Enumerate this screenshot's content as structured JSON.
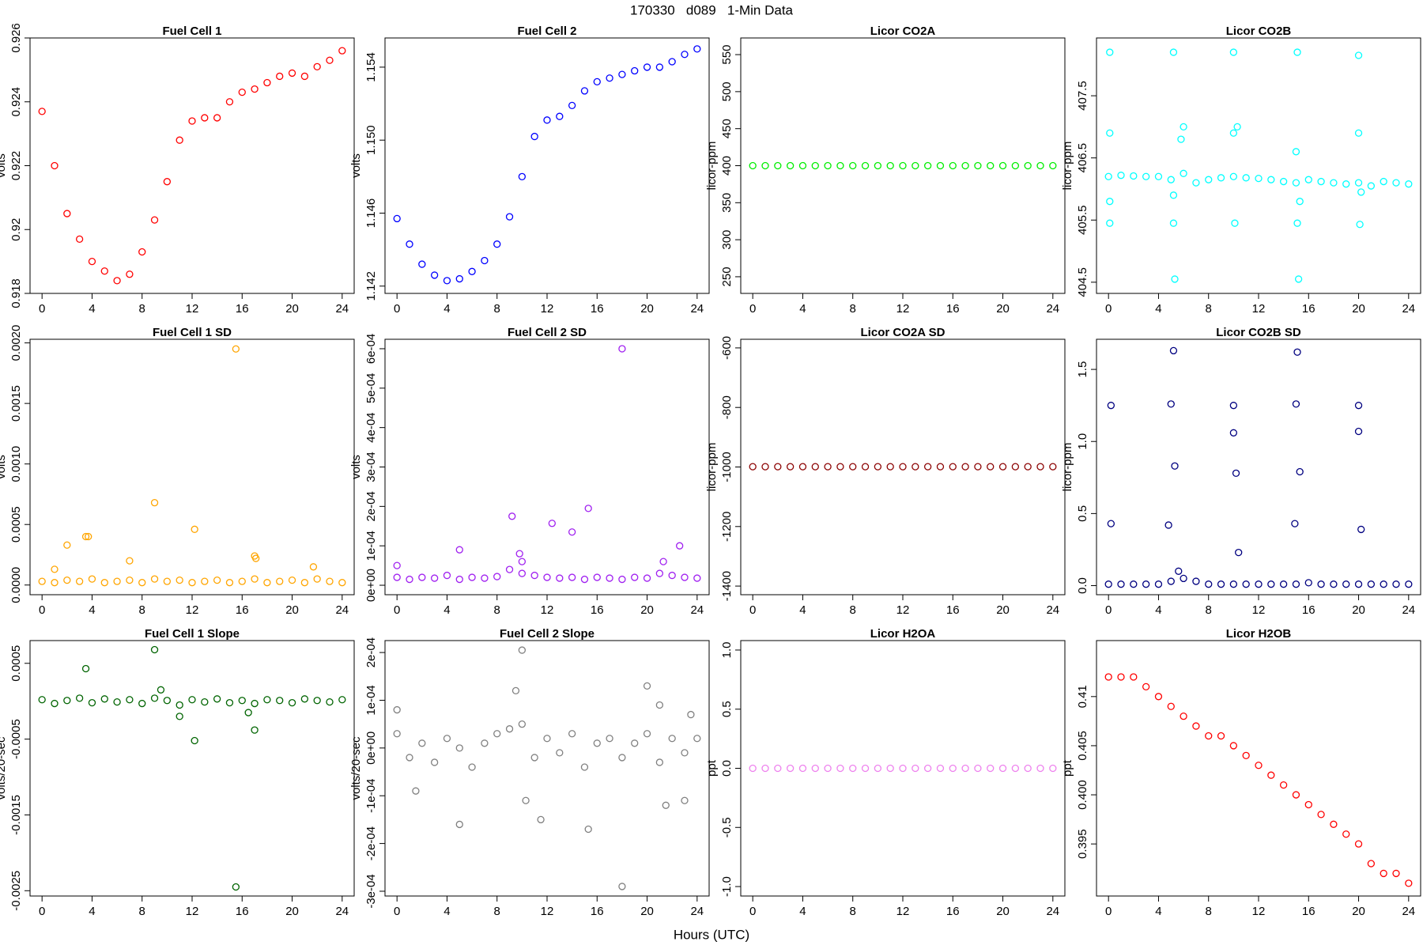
{
  "title": "170330   d089   1-Min Data",
  "x_label": "Hours (UTC)",
  "chart_data": [
    {
      "type": "scatter",
      "title": "Fuel Cell 1",
      "y_label": "volts",
      "color": "#ff0000",
      "x": [
        0,
        1,
        2,
        3,
        4,
        5,
        6,
        7,
        8,
        9,
        10,
        11,
        12,
        13,
        14,
        15,
        16,
        17,
        18,
        19,
        20,
        21,
        22,
        23,
        24
      ],
      "values": [
        0.9237,
        0.922,
        0.9205,
        0.9197,
        0.919,
        0.9187,
        0.9184,
        0.9186,
        0.9193,
        0.9203,
        0.9215,
        0.9228,
        0.9234,
        0.9235,
        0.9235,
        0.924,
        0.9243,
        0.9244,
        0.9246,
        0.9248,
        0.9249,
        0.9248,
        0.9251,
        0.9253,
        0.9256
      ],
      "xlim": [
        -0.96,
        24.96
      ],
      "xticks": [
        0,
        4,
        8,
        12,
        16,
        20,
        24
      ],
      "ylim": [
        0.918,
        0.926
      ],
      "yticks": [
        0.918,
        0.92,
        0.922,
        0.924,
        0.926
      ]
    },
    {
      "type": "scatter",
      "title": "Fuel Cell 2",
      "y_label": "volts",
      "color": "#0000ff",
      "x": [
        0,
        1,
        2,
        3,
        4,
        5,
        6,
        7,
        8,
        9,
        10,
        11,
        12,
        13,
        14,
        15,
        16,
        17,
        18,
        19,
        20,
        21,
        22,
        23,
        24
      ],
      "values": [
        1.1457,
        1.1443,
        1.1432,
        1.1426,
        1.1423,
        1.1424,
        1.1428,
        1.1434,
        1.1443,
        1.1458,
        1.148,
        1.1502,
        1.1511,
        1.1513,
        1.1519,
        1.1527,
        1.1532,
        1.1534,
        1.1536,
        1.1538,
        1.154,
        1.154,
        1.1543,
        1.1547,
        1.155
      ],
      "xlim": [
        -0.96,
        24.96
      ],
      "xticks": [
        0,
        4,
        8,
        12,
        16,
        20,
        24
      ],
      "ylim": [
        1.1416,
        1.1556
      ],
      "yticks": [
        1.142,
        1.146,
        {
          "value": 1.15,
          "label": "1.150"
        },
        1.154
      ]
    },
    {
      "type": "scatter",
      "title": "Licor CO2A",
      "y_label": "licor-ppm",
      "color": "#00ee00",
      "x": [
        0,
        1,
        2,
        3,
        4,
        5,
        6,
        7,
        8,
        9,
        10,
        11,
        12,
        13,
        14,
        15,
        16,
        17,
        18,
        19,
        20,
        21,
        22,
        23,
        24
      ],
      "values": [
        400,
        400,
        400,
        400,
        400,
        400,
        400,
        400,
        400,
        400,
        400,
        400,
        400,
        400,
        400,
        400,
        400,
        400,
        400,
        400,
        400,
        400,
        400,
        400,
        400
      ],
      "xlim": [
        -0.96,
        24.96
      ],
      "xticks": [
        0,
        4,
        8,
        12,
        16,
        20,
        24
      ],
      "ylim": [
        227.5,
        572.5
      ],
      "yticks": [
        250,
        300,
        350,
        400,
        450,
        500,
        550
      ]
    },
    {
      "type": "scatter",
      "title": "Licor CO2B",
      "y_label": "licor-ppm",
      "color": "#00ffff",
      "x": [
        0,
        1,
        2,
        3,
        4,
        5,
        6,
        7,
        8,
        9,
        10,
        11,
        12,
        13,
        14,
        15,
        16,
        17,
        18,
        19,
        20,
        21,
        22,
        23,
        24,
        0.1,
        0.1,
        0.1,
        0.1,
        5.2,
        5.2,
        5.3,
        5.2,
        5.8,
        6,
        10,
        10,
        10.1,
        10.3,
        15.1,
        15.1,
        15.2,
        15,
        15.3,
        20,
        20,
        20.1,
        20.2
      ],
      "values": [
        406.2,
        406.22,
        406.21,
        406.2,
        406.2,
        406.15,
        406.25,
        406.1,
        406.15,
        406.18,
        406.2,
        406.18,
        406.17,
        406.15,
        406.12,
        406.1,
        406.15,
        406.12,
        406.1,
        406.08,
        406.1,
        406.05,
        406.12,
        406.1,
        406.08,
        408.2,
        406.9,
        405.45,
        405.8,
        408.2,
        405.45,
        404.55,
        405.9,
        406.8,
        407,
        408.2,
        406.9,
        405.45,
        407,
        408.2,
        405.45,
        404.55,
        406.6,
        405.8,
        408.15,
        406.9,
        405.43,
        405.95
      ],
      "xlim": [
        -0.96,
        24.96
      ],
      "xticks": [
        0,
        4,
        8,
        12,
        16,
        20,
        24
      ],
      "ylim": [
        404.32,
        408.43
      ],
      "yticks": [
        404.5,
        405.5,
        406.5,
        407.5
      ]
    },
    {
      "type": "scatter",
      "title": "Fuel Cell 1 SD",
      "y_label": "volts",
      "color": "#ffa500",
      "x": [
        0,
        1,
        2,
        3,
        4,
        5,
        6,
        7,
        8,
        9,
        10,
        11,
        12,
        13,
        14,
        15,
        16,
        17,
        18,
        19,
        20,
        21,
        22,
        23,
        24,
        15.5,
        9,
        12.2,
        3.5,
        3.7,
        2,
        7,
        17,
        17.1,
        1,
        21.7
      ],
      "values": [
        3e-05,
        2e-05,
        4e-05,
        3e-05,
        5e-05,
        2e-05,
        3e-05,
        4e-05,
        2e-05,
        5e-05,
        3e-05,
        4e-05,
        2e-05,
        3e-05,
        4e-05,
        2e-05,
        3e-05,
        5e-05,
        2e-05,
        3e-05,
        4e-05,
        2e-05,
        5e-05,
        3e-05,
        2e-05,
        0.00195,
        0.00068,
        0.00046,
        0.0004,
        0.0004,
        0.00033,
        0.0002,
        0.00024,
        0.00022,
        0.00013,
        0.00015
      ],
      "xlim": [
        -0.96,
        24.96
      ],
      "xticks": [
        0,
        4,
        8,
        12,
        16,
        20,
        24
      ],
      "ylim": [
        -8e-05,
        0.00203
      ],
      "yticks": [
        {
          "value": 0,
          "label": "0.0000"
        },
        0.0005,
        {
          "value": 0.001,
          "label": "0.0010"
        },
        0.0015,
        {
          "value": 0.002,
          "label": "0.0020"
        }
      ]
    },
    {
      "type": "scatter",
      "title": "Fuel Cell 2 SD",
      "y_label": "volts",
      "color": "#a020f0",
      "x": [
        0,
        1,
        2,
        3,
        4,
        5,
        6,
        7,
        8,
        9,
        10,
        11,
        12,
        13,
        14,
        15,
        16,
        17,
        18,
        19,
        20,
        21,
        22,
        23,
        24,
        18,
        15.3,
        9.2,
        12.4,
        14,
        5,
        22.6,
        9.8,
        10,
        0,
        21.3
      ],
      "values": [
        2e-05,
        1.5e-05,
        2e-05,
        1.8e-05,
        2.5e-05,
        1.5e-05,
        2e-05,
        1.8e-05,
        2.2e-05,
        4e-05,
        3e-05,
        2.5e-05,
        2e-05,
        1.8e-05,
        2e-05,
        1.5e-05,
        2e-05,
        1.8e-05,
        1.5e-05,
        2e-05,
        1.8e-05,
        3e-05,
        2.5e-05,
        2e-05,
        1.8e-05,
        0.0006,
        0.000195,
        0.000175,
        0.000157,
        0.000135,
        9e-05,
        0.0001,
        8e-05,
        6e-05,
        5e-05,
        6e-05
      ],
      "xlim": [
        -0.96,
        24.96
      ],
      "xticks": [
        0,
        4,
        8,
        12,
        16,
        20,
        24
      ],
      "ylim": [
        -2.4e-05,
        0.000624
      ],
      "yticks": [
        {
          "value": 0,
          "label": "0e+00"
        },
        {
          "value": 0.0001,
          "label": "1e-04"
        },
        {
          "value": 0.0002,
          "label": "2e-04"
        },
        {
          "value": 0.0003,
          "label": "3e-04"
        },
        {
          "value": 0.0004,
          "label": "4e-04"
        },
        {
          "value": 0.0005,
          "label": "5e-04"
        },
        {
          "value": 0.0006,
          "label": "6e-04"
        }
      ]
    },
    {
      "type": "scatter",
      "title": "Licor CO2A SD",
      "y_label": "licor-ppm",
      "color": "#8b0000",
      "x": [
        0,
        1,
        2,
        3,
        4,
        5,
        6,
        7,
        8,
        9,
        10,
        11,
        12,
        13,
        14,
        15,
        16,
        17,
        18,
        19,
        20,
        21,
        22,
        23,
        24
      ],
      "values": [
        -999,
        -999,
        -999,
        -999,
        -999,
        -999,
        -999,
        -999,
        -999,
        -999,
        -999,
        -999,
        -999,
        -999,
        -999,
        -999,
        -999,
        -999,
        -999,
        -999,
        -999,
        -999,
        -999,
        -999,
        -999
      ],
      "xlim": [
        -0.96,
        24.96
      ],
      "xticks": [
        0,
        4,
        8,
        12,
        16,
        20,
        24
      ],
      "ylim": [
        -1429,
        -571
      ],
      "yticks": [
        -1400,
        -1200,
        -1000,
        -800,
        -600
      ]
    },
    {
      "type": "scatter",
      "title": "Licor CO2B SD",
      "y_label": "licor-ppm",
      "color": "#000080",
      "x": [
        0,
        1,
        2,
        3,
        4,
        5,
        6,
        7,
        8,
        9,
        10,
        11,
        12,
        13,
        14,
        15,
        16,
        17,
        18,
        19,
        20,
        21,
        22,
        23,
        24,
        0.2,
        0.2,
        5,
        5.2,
        5.3,
        4.8,
        10,
        10,
        10.2,
        10.4,
        15,
        15.1,
        15.3,
        14.9,
        20,
        20,
        20.2,
        5.6
      ],
      "values": [
        0.01,
        0.01,
        0.01,
        0.01,
        0.01,
        0.03,
        0.05,
        0.03,
        0.01,
        0.01,
        0.01,
        0.01,
        0.01,
        0.01,
        0.01,
        0.01,
        0.02,
        0.01,
        0.01,
        0.01,
        0.01,
        0.01,
        0.01,
        0.01,
        0.01,
        1.25,
        0.43,
        1.26,
        1.63,
        0.83,
        0.42,
        1.25,
        1.06,
        0.78,
        0.23,
        1.26,
        1.62,
        0.79,
        0.43,
        1.25,
        1.07,
        0.39,
        0.1
      ],
      "xlim": [
        -0.96,
        24.96
      ],
      "xticks": [
        0,
        4,
        8,
        12,
        16,
        20,
        24
      ],
      "ylim": [
        -0.063,
        1.709
      ],
      "yticks": [
        {
          "value": 0,
          "label": "0.0"
        },
        0.5,
        {
          "value": 1,
          "label": "1.0"
        },
        1.5
      ]
    },
    {
      "type": "scatter",
      "title": "Fuel Cell 1 Slope",
      "y_label": "volts/20-sec",
      "color": "#006400",
      "x": [
        0,
        1,
        2,
        3,
        4,
        5,
        6,
        7,
        8,
        9,
        10,
        11,
        12,
        13,
        14,
        15,
        16,
        17,
        18,
        19,
        20,
        21,
        22,
        23,
        24,
        9,
        3.5,
        15.5,
        12.2,
        17,
        11,
        16.5,
        9.5
      ],
      "values": [
        2e-05,
        -3e-05,
        1e-05,
        4e-05,
        -2e-05,
        3e-05,
        -1e-05,
        2e-05,
        -3e-05,
        4e-05,
        1e-05,
        -5e-05,
        2e-05,
        -1e-05,
        3e-05,
        -2e-05,
        1e-05,
        -3e-05,
        2e-05,
        1e-05,
        -2e-05,
        3e-05,
        1e-05,
        -1e-05,
        2e-05,
        0.00068,
        0.00043,
        -0.00245,
        -0.00052,
        -0.00038,
        -0.0002,
        -0.00015,
        0.00015
      ],
      "xlim": [
        -0.96,
        24.96
      ],
      "xticks": [
        0,
        4,
        8,
        12,
        16,
        20,
        24
      ],
      "ylim": [
        -0.00257,
        0.0008
      ],
      "yticks": [
        -0.0025,
        -0.0015,
        -0.0005,
        0.0005
      ]
    },
    {
      "type": "scatter",
      "title": "Fuel Cell 2 Slope",
      "y_label": "volts/20-sec",
      "color": "#808080",
      "x": [
        0,
        1,
        2,
        3,
        4,
        5,
        6,
        7,
        8,
        9,
        10,
        11,
        12,
        13,
        14,
        15,
        16,
        17,
        18,
        19,
        20,
        21,
        22,
        23,
        24,
        18,
        10,
        9.5,
        5,
        11.5,
        15.3,
        20,
        21.5,
        1.5,
        0,
        10.3,
        21,
        23.5,
        23
      ],
      "values": [
        3e-05,
        -2e-05,
        1e-05,
        -3e-05,
        2e-05,
        0,
        -4e-05,
        1e-05,
        3e-05,
        4e-05,
        5e-05,
        -2e-05,
        2e-05,
        -1e-05,
        3e-05,
        -4e-05,
        1e-05,
        2e-05,
        -2e-05,
        1e-05,
        3e-05,
        -3e-05,
        2e-05,
        -1e-05,
        2e-05,
        -0.00029,
        0.000205,
        0.00012,
        -0.00016,
        -0.00015,
        -0.00017,
        0.00013,
        -0.00012,
        -9e-05,
        8e-05,
        -0.00011,
        9e-05,
        7e-05,
        -0.00011
      ],
      "xlim": [
        -0.96,
        24.96
      ],
      "xticks": [
        0,
        4,
        8,
        12,
        16,
        20,
        24
      ],
      "ylim": [
        -0.00031,
        0.000225
      ],
      "yticks": [
        {
          "value": -0.0003,
          "label": "-3e-04"
        },
        {
          "value": -0.0002,
          "label": "-2e-04"
        },
        {
          "value": -0.0001,
          "label": "-1e-04"
        },
        {
          "value": 0,
          "label": "0e+00"
        },
        {
          "value": 0.0001,
          "label": "1e-04"
        },
        {
          "value": 0.0002,
          "label": "2e-04"
        }
      ]
    },
    {
      "type": "scatter",
      "title": "Licor H2OA",
      "y_label": "ppt",
      "color": "#ee82ee",
      "x": [
        0,
        1,
        2,
        3,
        4,
        5,
        6,
        7,
        8,
        9,
        10,
        11,
        12,
        13,
        14,
        15,
        16,
        17,
        18,
        19,
        20,
        21,
        22,
        23,
        24
      ],
      "values": [
        0,
        0,
        0,
        0,
        0,
        0,
        0,
        0,
        0,
        0,
        0,
        0,
        0,
        0,
        0,
        0,
        0,
        0,
        0,
        0,
        0,
        0,
        0,
        0,
        0
      ],
      "xlim": [
        -0.96,
        24.96
      ],
      "xticks": [
        0,
        4,
        8,
        12,
        16,
        20,
        24
      ],
      "ylim": [
        -1.08,
        1.08
      ],
      "yticks": [
        {
          "value": -1,
          "label": "-1.0"
        },
        -0.5,
        {
          "value": 0,
          "label": "0.0"
        },
        0.5,
        {
          "value": 1,
          "label": "1.0"
        }
      ]
    },
    {
      "type": "scatter",
      "title": "Licor H2OB",
      "y_label": "ppt",
      "color": "#ff0000",
      "x": [
        0,
        1,
        2,
        3,
        4,
        5,
        6,
        7,
        8,
        9,
        10,
        11,
        12,
        13,
        14,
        15,
        16,
        17,
        18,
        19,
        20,
        21,
        22,
        23,
        24
      ],
      "values": [
        0.412,
        0.412,
        0.412,
        0.411,
        0.41,
        0.409,
        0.408,
        0.407,
        0.406,
        0.406,
        0.405,
        0.404,
        0.403,
        0.402,
        0.401,
        0.4,
        0.399,
        0.398,
        0.397,
        0.396,
        0.395,
        0.393,
        0.392,
        0.392,
        0.391
      ],
      "xlim": [
        -0.96,
        24.96
      ],
      "xticks": [
        0,
        4,
        8,
        12,
        16,
        20,
        24
      ],
      "ylim": [
        0.3897,
        0.4157
      ],
      "yticks": [
        0.395,
        {
          "value": 0.4,
          "label": "0.400"
        },
        0.405,
        0.41
      ]
    }
  ]
}
